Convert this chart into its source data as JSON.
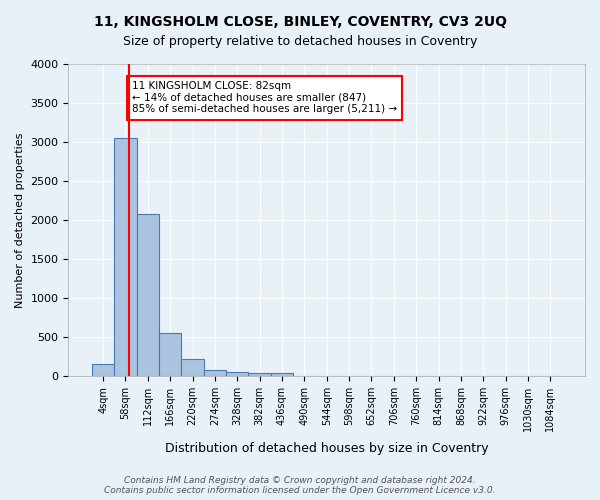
{
  "title1": "11, KINGSHOLM CLOSE, BINLEY, COVENTRY, CV3 2UQ",
  "title2": "Size of property relative to detached houses in Coventry",
  "xlabel": "Distribution of detached houses by size in Coventry",
  "ylabel": "Number of detached properties",
  "bin_labels": [
    "4sqm",
    "58sqm",
    "112sqm",
    "166sqm",
    "220sqm",
    "274sqm",
    "328sqm",
    "382sqm",
    "436sqm",
    "490sqm",
    "544sqm",
    "598sqm",
    "652sqm",
    "706sqm",
    "760sqm",
    "814sqm",
    "868sqm",
    "922sqm",
    "976sqm",
    "1030sqm",
    "1084sqm"
  ],
  "bar_heights": [
    150,
    3050,
    2080,
    550,
    220,
    70,
    50,
    40,
    40,
    0,
    0,
    0,
    0,
    0,
    0,
    0,
    0,
    0,
    0,
    0,
    0
  ],
  "bar_color": "#aac4e0",
  "bar_edge_color": "#4a7ab5",
  "vline_x": 1.18,
  "vline_color": "red",
  "ylim": [
    0,
    4000
  ],
  "yticks": [
    0,
    500,
    1000,
    1500,
    2000,
    2500,
    3000,
    3500,
    4000
  ],
  "annotation_text": "11 KINGSHOLM CLOSE: 82sqm\n← 14% of detached houses are smaller (847)\n85% of semi-detached houses are larger (5,211) →",
  "annotation_box_color": "white",
  "annotation_box_edge": "red",
  "footer": "Contains HM Land Registry data © Crown copyright and database right 2024.\nContains public sector information licensed under the Open Government Licence v3.0.",
  "bg_color": "#e8f0f8",
  "grid_color": "white"
}
